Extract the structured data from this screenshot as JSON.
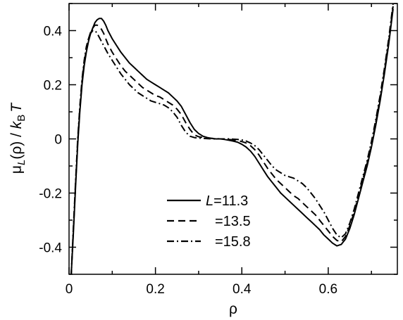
{
  "chart_data": {
    "type": "line",
    "title": "",
    "xlabel": "ρ",
    "ylabel_main": "μ",
    "ylabel_sub": "L",
    "ylabel_mid": "(ρ) / ",
    "ylabel_k": "k",
    "ylabel_ksub": "B",
    "ylabel_T": "T",
    "xlim": [
      0,
      0.76
    ],
    "ylim": [
      -0.5,
      0.5
    ],
    "xticks": [
      0,
      0.2,
      0.4,
      0.6
    ],
    "xtick_labels": [
      "0",
      "0.2",
      "0.4",
      "0.6"
    ],
    "yticks": [
      -0.4,
      -0.2,
      0,
      0.2,
      0.4
    ],
    "ytick_labels": [
      "-0.4",
      "-0.2",
      "0",
      "0.2",
      "0.4"
    ],
    "grid": false,
    "legend_position": "bottom-center",
    "series": [
      {
        "legend_italic": "L",
        "legend_text": "=11.3",
        "dash": "solid",
        "x": [
          0.005,
          0.01,
          0.015,
          0.02,
          0.025,
          0.03,
          0.035,
          0.04,
          0.045,
          0.05,
          0.055,
          0.06,
          0.065,
          0.07,
          0.075,
          0.08,
          0.085,
          0.09,
          0.1,
          0.11,
          0.12,
          0.13,
          0.14,
          0.15,
          0.16,
          0.17,
          0.18,
          0.19,
          0.2,
          0.21,
          0.22,
          0.23,
          0.24,
          0.25,
          0.26,
          0.27,
          0.28,
          0.29,
          0.3,
          0.31,
          0.32,
          0.33,
          0.34,
          0.35,
          0.36,
          0.37,
          0.38,
          0.39,
          0.4,
          0.41,
          0.42,
          0.43,
          0.44,
          0.45,
          0.46,
          0.47,
          0.48,
          0.49,
          0.5,
          0.51,
          0.52,
          0.53,
          0.54,
          0.55,
          0.56,
          0.57,
          0.58,
          0.59,
          0.6,
          0.61,
          0.62,
          0.63,
          0.64,
          0.65,
          0.66,
          0.67,
          0.68,
          0.69,
          0.7,
          0.71,
          0.72,
          0.73,
          0.74,
          0.75
        ],
        "y": [
          -0.5,
          -0.35,
          -0.18,
          -0.02,
          0.1,
          0.2,
          0.27,
          0.32,
          0.36,
          0.39,
          0.41,
          0.43,
          0.44,
          0.445,
          0.445,
          0.435,
          0.42,
          0.4,
          0.37,
          0.345,
          0.32,
          0.3,
          0.28,
          0.265,
          0.25,
          0.235,
          0.22,
          0.21,
          0.2,
          0.19,
          0.18,
          0.17,
          0.155,
          0.14,
          0.12,
          0.09,
          0.06,
          0.035,
          0.02,
          0.01,
          0.005,
          0.002,
          0.0,
          0.0,
          -0.002,
          -0.005,
          -0.008,
          -0.012,
          -0.02,
          -0.03,
          -0.045,
          -0.065,
          -0.09,
          -0.115,
          -0.14,
          -0.16,
          -0.18,
          -0.2,
          -0.215,
          -0.23,
          -0.245,
          -0.26,
          -0.275,
          -0.29,
          -0.305,
          -0.32,
          -0.335,
          -0.355,
          -0.37,
          -0.385,
          -0.395,
          -0.39,
          -0.37,
          -0.33,
          -0.28,
          -0.22,
          -0.16,
          -0.1,
          -0.03,
          0.05,
          0.14,
          0.24,
          0.35,
          0.48
        ]
      },
      {
        "legend_italic": "",
        "legend_text": "=13.5",
        "dash": "dashed",
        "x": [
          0.005,
          0.01,
          0.015,
          0.02,
          0.025,
          0.03,
          0.035,
          0.04,
          0.045,
          0.05,
          0.055,
          0.06,
          0.065,
          0.07,
          0.075,
          0.08,
          0.085,
          0.09,
          0.1,
          0.11,
          0.12,
          0.13,
          0.14,
          0.15,
          0.16,
          0.17,
          0.18,
          0.19,
          0.2,
          0.21,
          0.22,
          0.23,
          0.24,
          0.25,
          0.26,
          0.27,
          0.28,
          0.29,
          0.3,
          0.31,
          0.32,
          0.33,
          0.34,
          0.35,
          0.36,
          0.37,
          0.38,
          0.39,
          0.4,
          0.41,
          0.42,
          0.43,
          0.44,
          0.45,
          0.46,
          0.47,
          0.48,
          0.49,
          0.5,
          0.51,
          0.52,
          0.53,
          0.54,
          0.55,
          0.56,
          0.57,
          0.58,
          0.59,
          0.6,
          0.61,
          0.62,
          0.63,
          0.64,
          0.65,
          0.66,
          0.67,
          0.68,
          0.69,
          0.7,
          0.71,
          0.72,
          0.73,
          0.74,
          0.75
        ],
        "y": [
          -0.5,
          -0.34,
          -0.17,
          -0.01,
          0.11,
          0.21,
          0.28,
          0.33,
          0.37,
          0.395,
          0.41,
          0.42,
          0.42,
          0.415,
          0.405,
          0.39,
          0.37,
          0.35,
          0.32,
          0.295,
          0.27,
          0.25,
          0.235,
          0.22,
          0.205,
          0.19,
          0.18,
          0.17,
          0.16,
          0.155,
          0.145,
          0.135,
          0.125,
          0.11,
          0.09,
          0.06,
          0.035,
          0.015,
          0.008,
          0.005,
          0.003,
          0.002,
          0.001,
          0.0,
          0.0,
          -0.002,
          -0.004,
          -0.006,
          -0.01,
          -0.015,
          -0.025,
          -0.04,
          -0.06,
          -0.085,
          -0.11,
          -0.13,
          -0.15,
          -0.165,
          -0.18,
          -0.195,
          -0.21,
          -0.22,
          -0.235,
          -0.25,
          -0.265,
          -0.28,
          -0.3,
          -0.32,
          -0.34,
          -0.36,
          -0.375,
          -0.38,
          -0.36,
          -0.32,
          -0.27,
          -0.21,
          -0.15,
          -0.09,
          -0.02,
          0.06,
          0.15,
          0.25,
          0.36,
          0.49
        ]
      },
      {
        "legend_italic": "",
        "legend_text": "=15.8",
        "dash": "dashdot",
        "x": [
          0.005,
          0.01,
          0.015,
          0.02,
          0.025,
          0.03,
          0.035,
          0.04,
          0.045,
          0.05,
          0.055,
          0.06,
          0.065,
          0.07,
          0.075,
          0.08,
          0.085,
          0.09,
          0.1,
          0.11,
          0.12,
          0.13,
          0.14,
          0.15,
          0.16,
          0.17,
          0.18,
          0.19,
          0.2,
          0.21,
          0.22,
          0.23,
          0.24,
          0.25,
          0.26,
          0.27,
          0.28,
          0.29,
          0.3,
          0.31,
          0.32,
          0.33,
          0.34,
          0.35,
          0.36,
          0.37,
          0.38,
          0.39,
          0.4,
          0.41,
          0.42,
          0.43,
          0.44,
          0.45,
          0.46,
          0.47,
          0.48,
          0.49,
          0.5,
          0.51,
          0.52,
          0.53,
          0.54,
          0.55,
          0.56,
          0.57,
          0.58,
          0.59,
          0.6,
          0.61,
          0.62,
          0.63,
          0.64,
          0.65,
          0.66,
          0.67,
          0.68,
          0.69,
          0.7,
          0.71,
          0.72,
          0.73,
          0.74,
          0.75
        ],
        "y": [
          -0.5,
          -0.33,
          -0.16,
          0.0,
          0.12,
          0.22,
          0.29,
          0.34,
          0.37,
          0.39,
          0.4,
          0.4,
          0.39,
          0.375,
          0.36,
          0.345,
          0.33,
          0.315,
          0.29,
          0.265,
          0.24,
          0.22,
          0.2,
          0.185,
          0.17,
          0.16,
          0.15,
          0.14,
          0.135,
          0.13,
          0.125,
          0.115,
          0.1,
          0.08,
          0.05,
          0.025,
          0.01,
          0.005,
          0.003,
          0.002,
          0.001,
          0.0,
          0.0,
          0.0,
          0.0,
          0.0,
          -0.001,
          -0.002,
          -0.004,
          -0.008,
          -0.015,
          -0.025,
          -0.04,
          -0.06,
          -0.08,
          -0.1,
          -0.115,
          -0.125,
          -0.135,
          -0.14,
          -0.145,
          -0.155,
          -0.165,
          -0.18,
          -0.2,
          -0.22,
          -0.245,
          -0.27,
          -0.3,
          -0.33,
          -0.355,
          -0.365,
          -0.35,
          -0.31,
          -0.26,
          -0.2,
          -0.14,
          -0.08,
          -0.01,
          0.07,
          0.16,
          0.26,
          0.37,
          0.5
        ]
      }
    ]
  }
}
